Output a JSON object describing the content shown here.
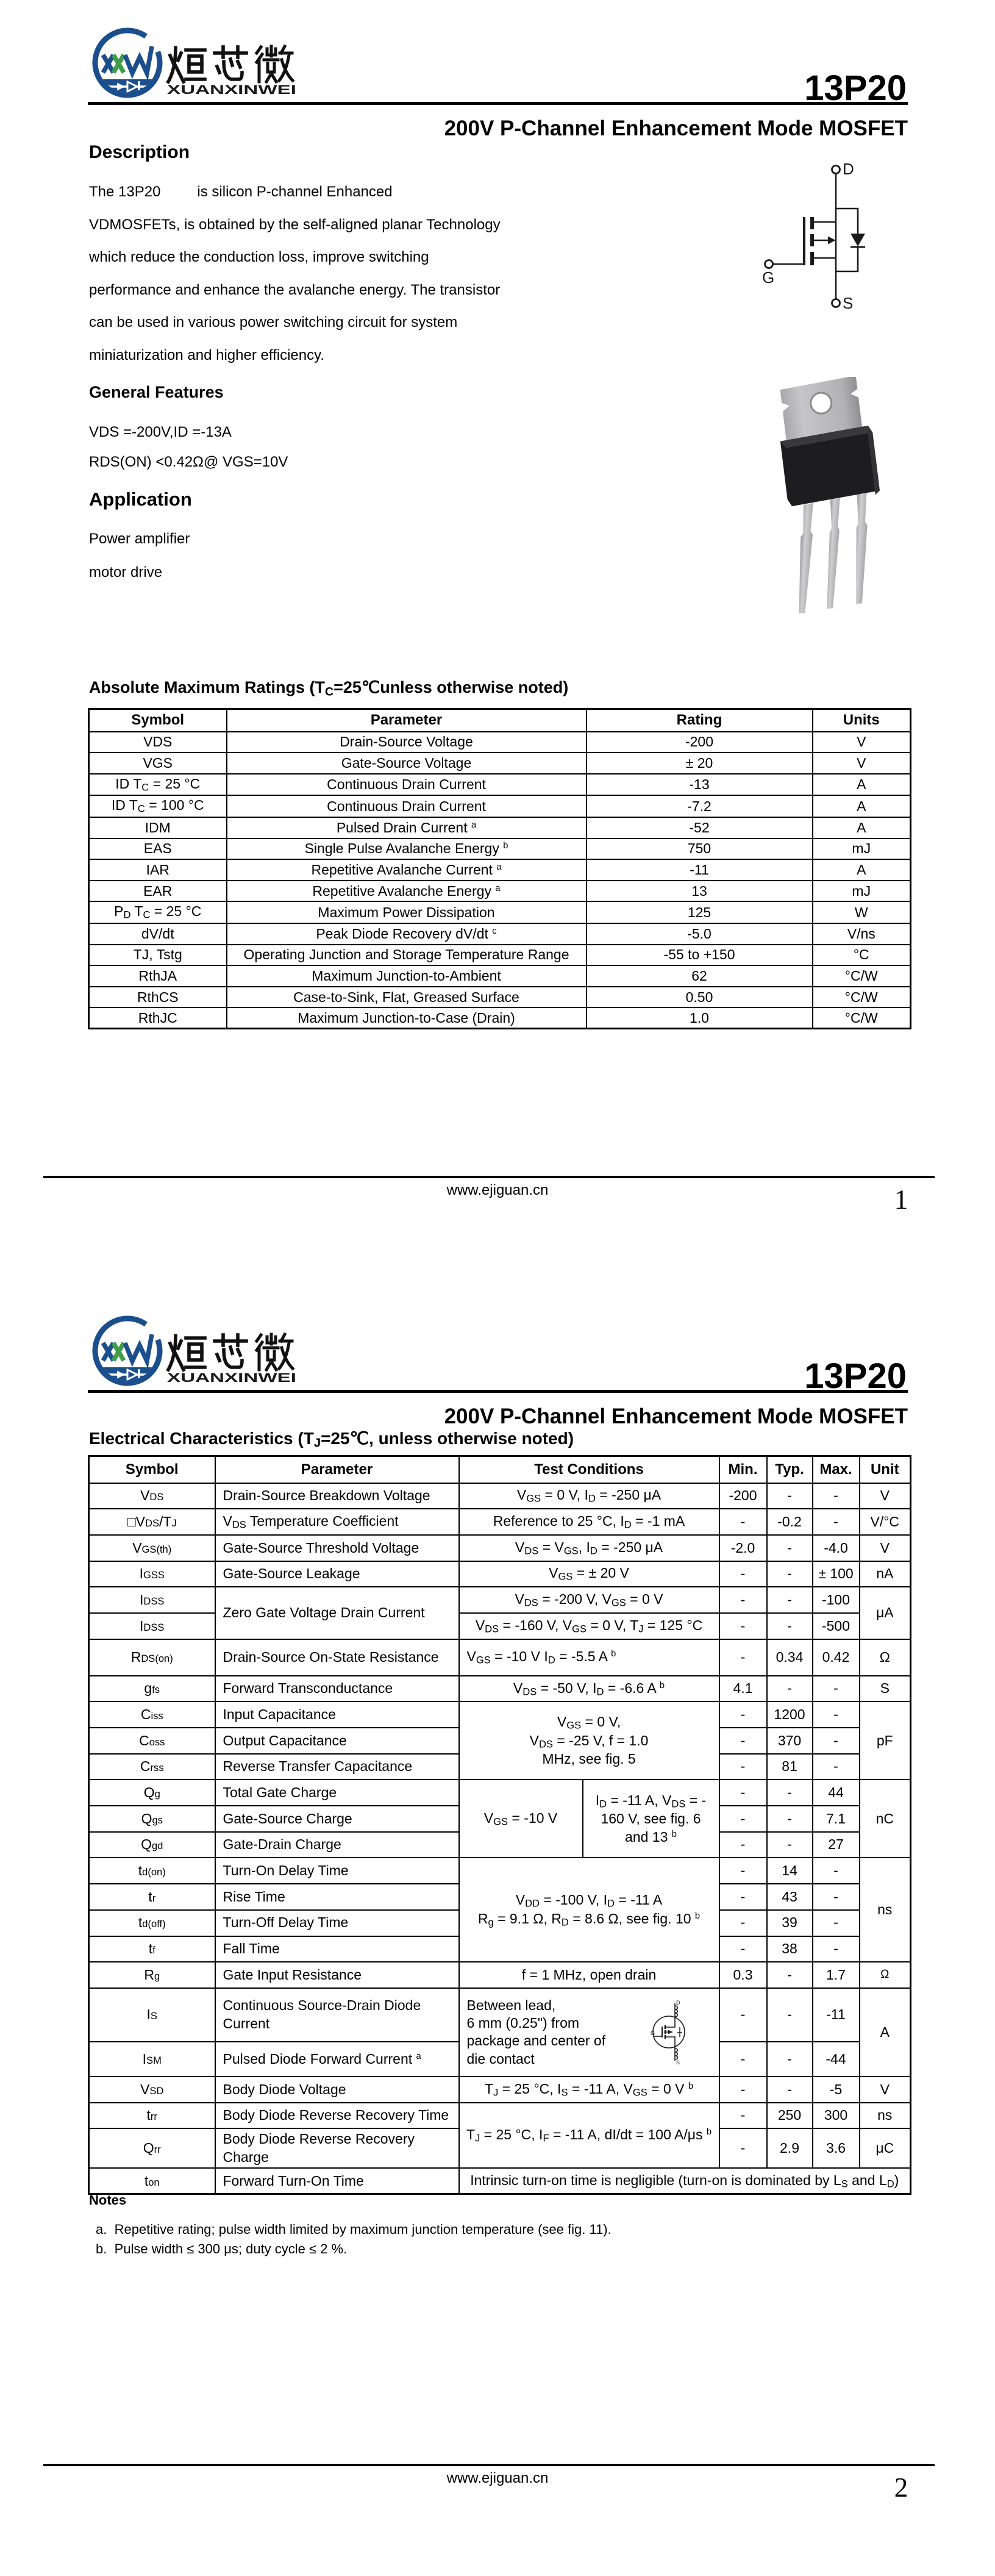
{
  "brand": {
    "chinese_name": "烜芯微",
    "latin_name": "XUANXINWEI",
    "logo_icon": "xxw-diode-logo"
  },
  "part_number": "13P20",
  "subtitle": "200V P-Channel Enhancement Mode MOSFET",
  "footer": {
    "website": "www.ejiguan.cn"
  },
  "page1": {
    "page_number": "1",
    "description": {
      "heading": "Description",
      "lines": [
        "The 13P20         is silicon P-channel Enhanced",
        "VDMOSFETs, is obtained by the self-aligned planar Technology",
        "which reduce the conduction loss, improve switching",
        "performance and enhance the avalanche energy. The transistor",
        "can be used in various power switching circuit for system",
        "miniaturization and higher efficiency."
      ]
    },
    "general_features": {
      "heading": "General Features",
      "lines": [
        "VDS =-200V,ID =-13A",
        "RDS(ON) <0.42Ω@ VGS=10V"
      ]
    },
    "application": {
      "heading": "Application",
      "lines": [
        "Power amplifier",
        "motor drive"
      ]
    },
    "schematic": {
      "drain_label": "D",
      "gate_label": "G",
      "source_label": "S"
    },
    "amr_table": {
      "title": "Absolute Maximum Ratings (T~C~=25℃unless otherwise noted)",
      "headers": [
        {
          "t": "Symbol"
        },
        {
          "t": "Parameter"
        },
        {
          "t": "Rating"
        },
        {
          "t": "Units"
        }
      ],
      "rows": [
        [
          {
            "t": "VDS"
          },
          {
            "t": "Drain-Source Voltage"
          },
          {
            "t": "-200"
          },
          {
            "t": "V"
          }
        ],
        [
          {
            "t": "VGS"
          },
          {
            "t": "Gate-Source Voltage"
          },
          {
            "t": "± 20"
          },
          {
            "t": "V"
          }
        ],
        [
          {
            "t": "ID T~C~ = 25 °C"
          },
          {
            "t": "Continuous Drain Current"
          },
          {
            "t": "-13"
          },
          {
            "t": "A"
          }
        ],
        [
          {
            "t": "ID T~C~ = 100 °C"
          },
          {
            "t": "Continuous Drain Current"
          },
          {
            "t": "-7.2"
          },
          {
            "t": "A"
          }
        ],
        [
          {
            "t": "IDM"
          },
          {
            "t": "Pulsed Drain Current ^a^"
          },
          {
            "t": "-52"
          },
          {
            "t": "A"
          }
        ],
        [
          {
            "t": "EAS"
          },
          {
            "t": "Single Pulse Avalanche Energy ^b^"
          },
          {
            "t": "750"
          },
          {
            "t": "mJ"
          }
        ],
        [
          {
            "t": "IAR"
          },
          {
            "t": "Repetitive Avalanche Current ^a^"
          },
          {
            "t": "-11"
          },
          {
            "t": "A"
          }
        ],
        [
          {
            "t": "EAR"
          },
          {
            "t": "Repetitive Avalanche Energy ^a^"
          },
          {
            "t": "13"
          },
          {
            "t": "mJ"
          }
        ],
        [
          {
            "t": "P~D~ T~C~ = 25 °C"
          },
          {
            "t": "Maximum Power Dissipation"
          },
          {
            "t": "125"
          },
          {
            "t": "W"
          }
        ],
        [
          {
            "t": "dV/dt"
          },
          {
            "t": "Peak Diode Recovery dV/dt ^c^"
          },
          {
            "t": "-5.0"
          },
          {
            "t": "V/ns"
          }
        ],
        [
          {
            "t": "TJ, Tstg"
          },
          {
            "t": "Operating Junction and Storage Temperature Range"
          },
          {
            "t": "-55 to +150"
          },
          {
            "t": "°C"
          }
        ],
        [
          {
            "t": "RthJA"
          },
          {
            "t": "Maximum Junction-to-Ambient"
          },
          {
            "t": "62"
          },
          {
            "t": "°C/W"
          }
        ],
        [
          {
            "t": "RthCS"
          },
          {
            "t": "Case-to-Sink, Flat, Greased Surface"
          },
          {
            "t": "0.50"
          },
          {
            "t": "°C/W"
          }
        ],
        [
          {
            "t": "RthJC"
          },
          {
            "t": "Maximum Junction-to-Case (Drain)"
          },
          {
            "t": "1.0"
          },
          {
            "t": "°C/W"
          }
        ]
      ]
    }
  },
  "page2": {
    "page_number": "2",
    "ec_table": {
      "title": "Electrical Characteristics (T~J~=25℃, unless otherwise noted)",
      "headers": [
        {
          "t": "Symbol"
        },
        {
          "t": "Parameter"
        },
        {
          "t": "Test Conditions",
          "cs": 2
        },
        {
          "t": "Min."
        },
        {
          "t": "Typ."
        },
        {
          "t": "Max."
        },
        {
          "t": "Unit"
        }
      ],
      "rows": [
        [
          {
            "t": "V{DS}"
          },
          {
            "t": "Drain-Source Breakdown Voltage",
            "al": "l"
          },
          {
            "t": "V~GS~ = 0 V, I~D~ = -250 μA",
            "cs": 2
          },
          {
            "t": "-200"
          },
          {
            "t": "-"
          },
          {
            "t": "-"
          },
          {
            "t": "V"
          }
        ],
        [
          {
            "t": "□V{DS}/T{J}"
          },
          {
            "t": "V~DS~ Temperature Coefficient",
            "al": "l"
          },
          {
            "t": "Reference to 25 °C, I~D~ = -1 mA",
            "cs": 2
          },
          {
            "t": "-"
          },
          {
            "t": "-0.2"
          },
          {
            "t": "-"
          },
          {
            "t": "V/°C"
          }
        ],
        [
          {
            "t": "V{GS(th)}"
          },
          {
            "t": "Gate-Source Threshold Voltage",
            "al": "l"
          },
          {
            "t": "V~DS~ = V~GS~, I~D~ = -250 μA",
            "cs": 2
          },
          {
            "t": "-2.0"
          },
          {
            "t": "-"
          },
          {
            "t": "-4.0"
          },
          {
            "t": "V"
          }
        ],
        [
          {
            "t": "I{GSS}"
          },
          {
            "t": "Gate-Source Leakage",
            "al": "l"
          },
          {
            "t": "V~GS~ = ± 20 V",
            "cs": 2
          },
          {
            "t": "-"
          },
          {
            "t": "-"
          },
          {
            "t": "± 100"
          },
          {
            "t": "nA"
          }
        ],
        [
          {
            "t": "I{DSS}"
          },
          {
            "t": "Zero Gate Voltage Drain Current",
            "al": "l",
            "rs": 2
          },
          {
            "t": "V~DS~ = -200 V, V~GS~ = 0 V",
            "cs": 2
          },
          {
            "t": "-"
          },
          {
            "t": "-"
          },
          {
            "t": "-100"
          },
          {
            "t": "μA",
            "rs": 2
          }
        ],
        [
          {
            "t": "I{DSS}"
          },
          {
            "t": "V~DS~ = -160 V, V~GS~ = 0 V, T~J~ = 125 °C",
            "cs": 2
          },
          {
            "t": "-"
          },
          {
            "t": "-"
          },
          {
            "t": "-500"
          }
        ],
        [
          {
            "t": "R{DS(on)}"
          },
          {
            "t": "Drain-Source On-State Resistance",
            "al": "l"
          },
          {
            "t": "V~GS~ = -10 V I~D~ = -5.5 A ^b^",
            "cs": 2,
            "al": "l"
          },
          {
            "t": "-"
          },
          {
            "t": "0.34"
          },
          {
            "t": "0.42"
          },
          {
            "t": "Ω"
          }
        ],
        [
          {
            "t": "g{fs}"
          },
          {
            "t": "Forward Transconductance",
            "al": "l"
          },
          {
            "t": "V~DS~ = -50 V, I~D~ = -6.6 A ^b^",
            "cs": 2
          },
          {
            "t": "4.1"
          },
          {
            "t": "-"
          },
          {
            "t": "-"
          },
          {
            "t": "S"
          }
        ],
        [
          {
            "t": "C{iss}"
          },
          {
            "t": "Input Capacitance",
            "al": "l"
          },
          {
            "t": "V~GS~ = 0 V,\nV~DS~ = -25 V, f = 1.0\nMHz, see fig. 5",
            "cs": 2,
            "rs": 3
          },
          {
            "t": "-"
          },
          {
            "t": "1200"
          },
          {
            "t": "-"
          },
          {
            "t": "pF",
            "rs": 3
          }
        ],
        [
          {
            "t": "C{oss}"
          },
          {
            "t": "Output Capacitance",
            "al": "l"
          },
          {
            "t": "-"
          },
          {
            "t": "370"
          },
          {
            "t": "-"
          }
        ],
        [
          {
            "t": "C{rss}"
          },
          {
            "t": "Reverse Transfer Capacitance",
            "al": "l"
          },
          {
            "t": "-"
          },
          {
            "t": "81"
          },
          {
            "t": "-"
          }
        ],
        [
          {
            "t": "Q{g}"
          },
          {
            "t": "Total Gate Charge",
            "al": "l"
          },
          {
            "t": "V~GS~ = -10 V",
            "rs": 3
          },
          {
            "t": "I~D~ = -11 A, V~DS~ = -\n160 V, see fig. 6\nand 13 ^b^",
            "rs": 3
          },
          {
            "t": "-"
          },
          {
            "t": "-"
          },
          {
            "t": "44"
          },
          {
            "t": "nC",
            "rs": 3
          }
        ],
        [
          {
            "t": "Q{gs}"
          },
          {
            "t": "Gate-Source Charge",
            "al": "l"
          },
          {
            "t": "-"
          },
          {
            "t": "-"
          },
          {
            "t": "7.1"
          }
        ],
        [
          {
            "t": "Q{gd}"
          },
          {
            "t": "Gate-Drain Charge",
            "al": "l"
          },
          {
            "t": "-"
          },
          {
            "t": "-"
          },
          {
            "t": "27"
          }
        ],
        [
          {
            "t": "t{d(on)}"
          },
          {
            "t": "Turn-On Delay Time",
            "al": "l"
          },
          {
            "t": "V~DD~ = -100 V, I~D~ = -11 A\nR~g~ = 9.1 Ω, R~D~ = 8.6 Ω, see fig. 10 ^b^",
            "cs": 2,
            "rs": 4
          },
          {
            "t": "-"
          },
          {
            "t": "14"
          },
          {
            "t": "-"
          },
          {
            "t": "ns",
            "rs": 4
          }
        ],
        [
          {
            "t": "t{r}"
          },
          {
            "t": "Rise Time",
            "al": "l"
          },
          {
            "t": "-"
          },
          {
            "t": "43"
          },
          {
            "t": "-"
          }
        ],
        [
          {
            "t": "t{d(off)}"
          },
          {
            "t": "Turn-Off Delay Time",
            "al": "l"
          },
          {
            "t": "-"
          },
          {
            "t": "39"
          },
          {
            "t": "-"
          }
        ],
        [
          {
            "t": "t{f}"
          },
          {
            "t": "Fall Time",
            "al": "l"
          },
          {
            "t": "-"
          },
          {
            "t": "38"
          },
          {
            "t": "-"
          }
        ],
        [
          {
            "t": "R{g}"
          },
          {
            "t": "Gate Input Resistance",
            "al": "l"
          },
          {
            "t": "f = 1 MHz, open drain",
            "cs": 2
          },
          {
            "t": "0.3"
          },
          {
            "t": "-"
          },
          {
            "t": "1.7"
          },
          {
            "t": "Ω",
            "cls": "small-unit"
          }
        ],
        [
          {
            "t": "I{S}"
          },
          {
            "t": "Continuous Source-Drain Diode\nCurrent",
            "al": "l"
          },
          {
            "t": "Between lead,\n6 mm (0.25\") from\npackage and center of\ndie contact",
            "cs": 2,
            "rs": 2,
            "al": "l",
            "icon": true
          },
          {
            "t": "-"
          },
          {
            "t": "-"
          },
          {
            "t": "-11"
          },
          {
            "t": "A",
            "rs": 2
          }
        ],
        [
          {
            "t": "I{SM}"
          },
          {
            "t": "Pulsed Diode Forward Current ^a^",
            "al": "l"
          },
          {
            "t": "-"
          },
          {
            "t": "-"
          },
          {
            "t": "-44"
          }
        ],
        [
          {
            "t": "V{SD}"
          },
          {
            "t": "Body Diode Voltage",
            "al": "l"
          },
          {
            "t": "T~J~ = 25 °C, I~S~ = -11 A, V~GS~ = 0 V ^b^",
            "cs": 2
          },
          {
            "t": "-"
          },
          {
            "t": "-"
          },
          {
            "t": "-5"
          },
          {
            "t": "V"
          }
        ],
        [
          {
            "t": "t{rr}"
          },
          {
            "t": "Body Diode Reverse Recovery Time",
            "al": "l"
          },
          {
            "t": "T~J~ = 25 °C, I~F~ = -11 A, dI/dt = 100 A/μs ^b^",
            "cs": 2,
            "rs": 2
          },
          {
            "t": "-"
          },
          {
            "t": "250"
          },
          {
            "t": "300"
          },
          {
            "t": "ns"
          }
        ],
        [
          {
            "t": "Q{rr}"
          },
          {
            "t": "Body Diode Reverse Recovery\nCharge",
            "al": "l"
          },
          {
            "t": "-"
          },
          {
            "t": "2.9"
          },
          {
            "t": "3.6"
          },
          {
            "t": "μC"
          }
        ],
        [
          {
            "t": "t{on}"
          },
          {
            "t": "Forward Turn-On Time",
            "al": "l"
          },
          {
            "t": "Intrinsic turn-on time is negligible (turn-on is dominated by L~S~ and L~D~)",
            "cs": 6
          }
        ]
      ]
    },
    "notes": {
      "heading": "Notes",
      "items": [
        "a.  Repetitive rating; pulse width limited by maximum junction temperature (see fig. 11).",
        "b.  Pulse width ≤ 300 μs; duty cycle ≤ 2 %."
      ]
    }
  }
}
